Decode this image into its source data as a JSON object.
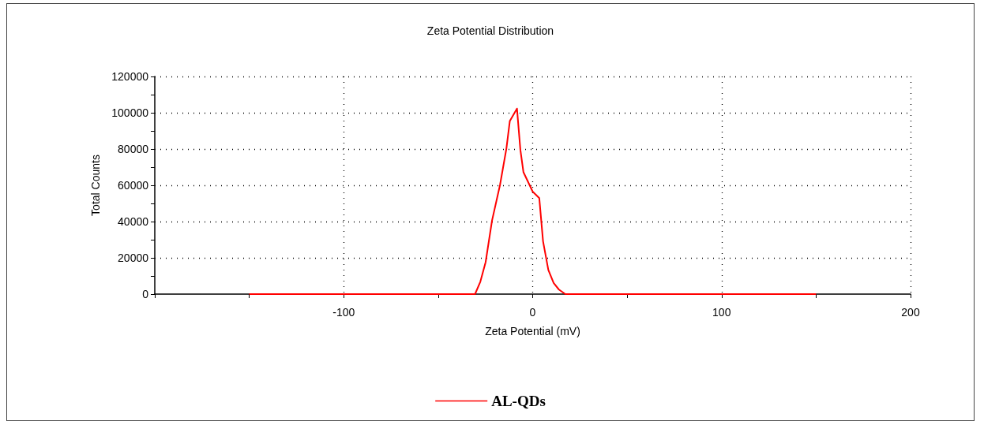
{
  "chart_data": {
    "type": "line",
    "title": "Zeta Potential Distribution",
    "xlabel": "Zeta Potential (mV)",
    "ylabel": "Total Counts",
    "x": [
      -150,
      -30.5,
      -27.7,
      -24.9,
      -21.5,
      -17.3,
      -13.9,
      -12.1,
      -8.3,
      -6.5,
      -4.9,
      0,
      3.5,
      5.5,
      8.3,
      11.1,
      13.9,
      17.3,
      150
    ],
    "series": [
      {
        "name": "AL-QDs",
        "color": "#ff0000",
        "values": [
          0,
          0,
          6800,
          17600,
          40600,
          60100,
          80300,
          95400,
          102300,
          79500,
          67300,
          56500,
          52900,
          29100,
          13300,
          6100,
          2500,
          0,
          0
        ]
      }
    ],
    "xlim": [
      -200,
      200
    ],
    "xticks": [
      {
        "value": -200,
        "label": null
      },
      {
        "value": -150,
        "label": null
      },
      -100,
      {
        "value": -50,
        "label": null
      },
      0,
      {
        "value": 50,
        "label": null
      },
      100,
      {
        "value": 150,
        "label": null
      },
      200
    ],
    "ylim": [
      0,
      120000
    ],
    "yticks": [
      0,
      {
        "value": 10000,
        "label": null
      },
      20000,
      {
        "value": 30000,
        "label": null
      },
      40000,
      {
        "value": 50000,
        "label": null
      },
      60000,
      {
        "value": 70000,
        "label": null
      },
      80000,
      {
        "value": 90000,
        "label": null
      },
      100000,
      {
        "value": 110000,
        "label": null
      },
      120000
    ],
    "grid": true,
    "legend": "bottom",
    "marker": "none",
    "line_style": "solid"
  }
}
